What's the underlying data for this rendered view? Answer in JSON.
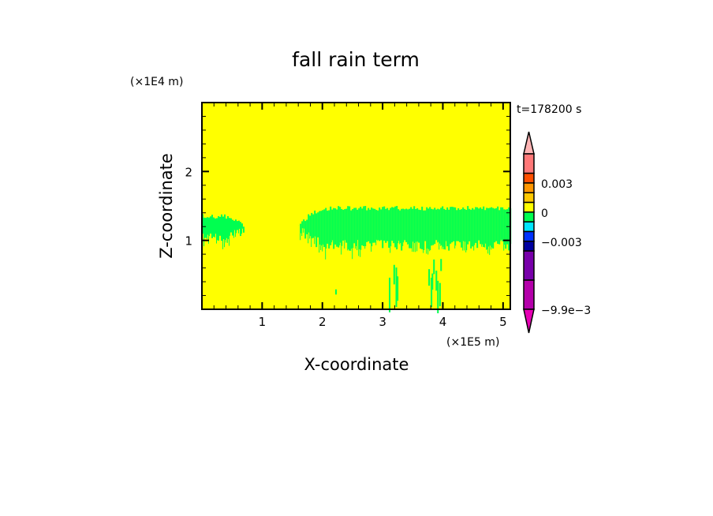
{
  "chart_data": {
    "type": "heatmap",
    "title": "fall rain term",
    "xlabel": "X-coordinate",
    "ylabel": "Z-coordinate",
    "x_unit_label": "(×1E5 m)",
    "y_unit_label": "(×1E4 m)",
    "time_label": "t=178200 s",
    "xlim": [
      0,
      5.12
    ],
    "ylim": [
      0,
      3
    ],
    "x_ticks": [
      1,
      2,
      3,
      4,
      5
    ],
    "x_tick_labels": [
      "1",
      "2",
      "3",
      "4",
      "5"
    ],
    "y_ticks": [
      1,
      2
    ],
    "y_tick_labels": [
      "1",
      "2"
    ],
    "minor_tick_step": 0.2,
    "background_color": "#ffff00",
    "field_color": "#00ff50",
    "field_regions": [
      {
        "x": [
          0,
          0.72
        ],
        "z_bottom": 0.95,
        "z_top": 1.38
      },
      {
        "x": [
          1.6,
          5.12
        ],
        "z_bottom": 0.85,
        "z_top": 1.5
      },
      {
        "x": [
          3.05,
          3.25
        ],
        "z_bottom": 0.0,
        "z_top": 0.9
      },
      {
        "x": [
          3.75,
          3.95
        ],
        "z_bottom": 0.0,
        "z_top": 0.75
      },
      {
        "x": [
          2.18,
          2.22
        ],
        "z_bottom": 0.1,
        "z_top": 0.3
      }
    ],
    "colorbar": {
      "colors": [
        "#ffb4b4",
        "#ff7878",
        "#ff5000",
        "#ff9600",
        "#ffc800",
        "#ffff00",
        "#00ff50",
        "#00e6ff",
        "#0032ff",
        "#0000a0",
        "#7800aa",
        "#b400aa",
        "#e600b4"
      ],
      "units": [
        0,
        2,
        1,
        1,
        1,
        1,
        1,
        1,
        1,
        1,
        3,
        3,
        0
      ],
      "labels": [
        {
          "value": 0.003,
          "text": "0.003"
        },
        {
          "value": 0,
          "text": "0"
        },
        {
          "value": -0.003,
          "text": "−0.003"
        },
        {
          "value": -0.0099,
          "text": "−9.9e−3"
        }
      ],
      "extend": "both"
    }
  }
}
